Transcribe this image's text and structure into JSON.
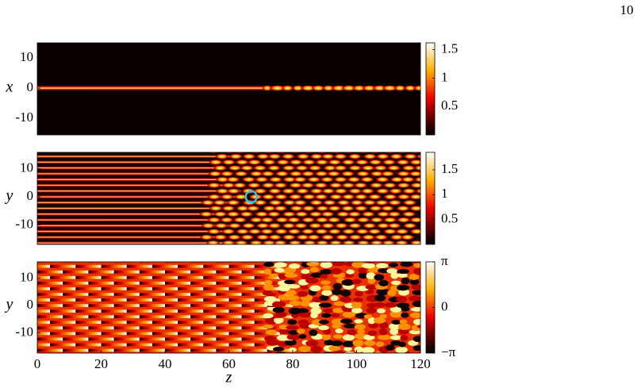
{
  "page_number": "10",
  "chart_data": [
    {
      "type": "heatmap",
      "ylabel": "x",
      "xlim": [
        0,
        120
      ],
      "ylim": [
        -15.5,
        15
      ],
      "yticks": [
        -10,
        0,
        10
      ],
      "colormap": "hot",
      "clim": [
        0,
        1.62
      ],
      "cticks": [
        0.5,
        1,
        1.5
      ]
    },
    {
      "type": "heatmap",
      "ylabel": "y",
      "xlim": [
        0,
        120
      ],
      "ylim": [
        -16.9,
        15.8
      ],
      "yticks": [
        -10,
        0,
        10
      ],
      "colormap": "hot",
      "clim": [
        0,
        1.85
      ],
      "cticks": [
        0.5,
        1,
        1.5
      ]
    },
    {
      "type": "heatmap",
      "ylabel": "y",
      "xlabel": "z",
      "xlim": [
        0,
        120
      ],
      "ylim": [
        -17.4,
        16
      ],
      "yticks": [
        -10,
        0,
        10
      ],
      "xticks": [
        0,
        20,
        40,
        60,
        80,
        100,
        120
      ],
      "colormap": "hot",
      "clim": [
        -3.1416,
        3.1416
      ],
      "cticks": [
        {
          "value": -3.1416,
          "label": "−π"
        },
        {
          "value": 0,
          "label": "0"
        },
        {
          "value": 3.1416,
          "label": "π"
        }
      ]
    }
  ]
}
